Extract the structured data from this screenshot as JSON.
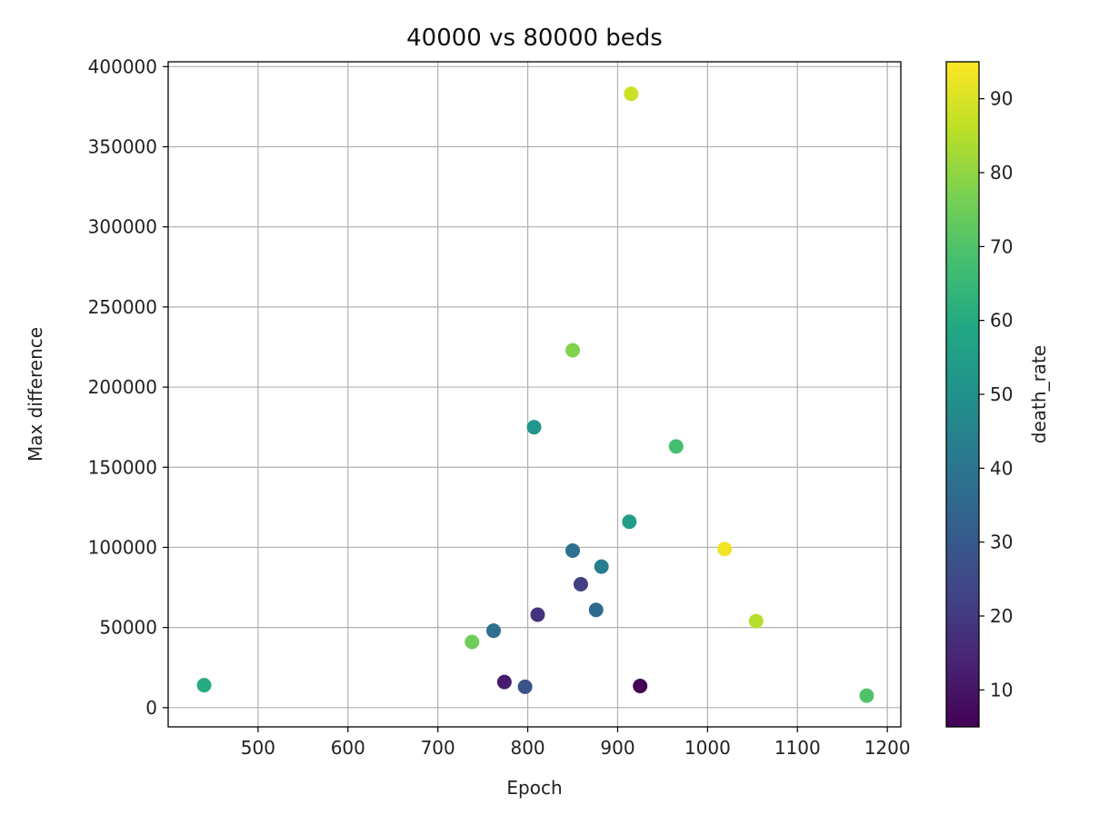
{
  "chart_data": {
    "type": "scatter",
    "title": "40000 vs 80000 beds",
    "xlabel": "Epoch",
    "ylabel": "Max difference",
    "xlim": [
      400,
      1215
    ],
    "ylim": [
      -12000,
      403000
    ],
    "xticks": [
      500,
      600,
      700,
      800,
      900,
      1000,
      1100,
      1200
    ],
    "yticks": [
      0,
      50000,
      100000,
      150000,
      200000,
      250000,
      300000,
      350000,
      400000
    ],
    "grid": true,
    "colorbar": {
      "label": "death_rate",
      "colormap": "viridis",
      "range": [
        5,
        95
      ],
      "ticks": [
        10,
        20,
        30,
        40,
        50,
        60,
        70,
        80,
        90
      ]
    },
    "points": [
      {
        "x": 440,
        "y": 14000,
        "c": 60
      },
      {
        "x": 738,
        "y": 41000,
        "c": 75
      },
      {
        "x": 762,
        "y": 48000,
        "c": 38
      },
      {
        "x": 774,
        "y": 16000,
        "c": 12
      },
      {
        "x": 797,
        "y": 13000,
        "c": 28
      },
      {
        "x": 807,
        "y": 175000,
        "c": 52
      },
      {
        "x": 811,
        "y": 58000,
        "c": 18
      },
      {
        "x": 850,
        "y": 223000,
        "c": 78
      },
      {
        "x": 850,
        "y": 98000,
        "c": 38
      },
      {
        "x": 859,
        "y": 77000,
        "c": 22
      },
      {
        "x": 876,
        "y": 61000,
        "c": 36
      },
      {
        "x": 882,
        "y": 88000,
        "c": 43
      },
      {
        "x": 913,
        "y": 116000,
        "c": 55
      },
      {
        "x": 915,
        "y": 383000,
        "c": 88
      },
      {
        "x": 925,
        "y": 13500,
        "c": 6
      },
      {
        "x": 965,
        "y": 163000,
        "c": 68
      },
      {
        "x": 1019,
        "y": 99000,
        "c": 93
      },
      {
        "x": 1054,
        "y": 54000,
        "c": 85
      },
      {
        "x": 1177,
        "y": 7500,
        "c": 70
      }
    ]
  }
}
